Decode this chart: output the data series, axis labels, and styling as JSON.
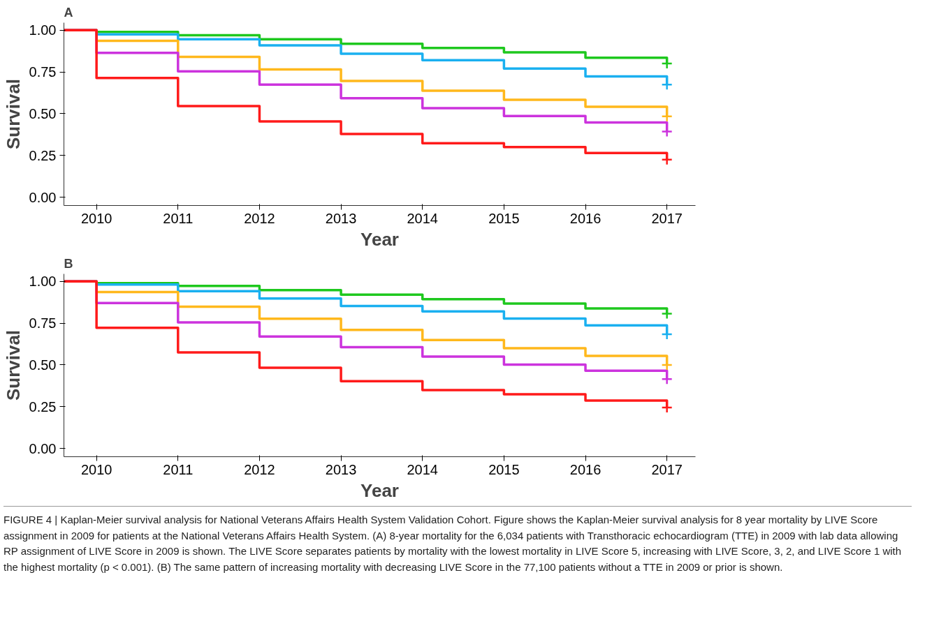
{
  "chart_data": [
    {
      "type": "step",
      "title": "A",
      "xlabel": "Year",
      "ylabel": "Survival",
      "xlim": [
        2009.6,
        2017.35
      ],
      "ylim": [
        -0.05,
        1.045
      ],
      "xticks": [
        2010,
        2011,
        2012,
        2013,
        2014,
        2015,
        2016,
        2017
      ],
      "yticks": [
        {
          "value": 0,
          "label": "0.00"
        },
        {
          "value": 0.25,
          "label": "0.25"
        },
        {
          "value": 0.5,
          "label": "0.50"
        },
        {
          "value": 0.75,
          "label": "0.75"
        },
        {
          "value": 1,
          "label": "1.00"
        }
      ],
      "grid": false,
      "series": [
        {
          "color": "#1ec81e",
          "x": [
            2009.6,
            2010,
            2011,
            2012,
            2013,
            2014,
            2015,
            2016,
            2017
          ],
          "values": [
            1,
            0.99,
            0.97,
            0.946,
            0.919,
            0.894,
            0.867,
            0.835,
            0.8
          ]
        },
        {
          "color": "#1ab0f0",
          "x": [
            2009.6,
            2010,
            2011,
            2012,
            2013,
            2014,
            2015,
            2016,
            2017
          ],
          "values": [
            1,
            0.975,
            0.946,
            0.909,
            0.859,
            0.82,
            0.77,
            0.723,
            0.674
          ]
        },
        {
          "color": "#ffb81c",
          "x": [
            2009.6,
            2010,
            2011,
            2012,
            2013,
            2014,
            2015,
            2016,
            2017
          ],
          "values": [
            1,
            0.936,
            0.84,
            0.765,
            0.696,
            0.637,
            0.583,
            0.541,
            0.484
          ]
        },
        {
          "color": "#cc33dd",
          "x": [
            2009.6,
            2010,
            2011,
            2012,
            2013,
            2014,
            2015,
            2016,
            2017
          ],
          "values": [
            1,
            0.864,
            0.753,
            0.674,
            0.593,
            0.533,
            0.486,
            0.447,
            0.393
          ]
        },
        {
          "color": "#ff1a1a",
          "x": [
            2009.6,
            2010,
            2011,
            2012,
            2013,
            2014,
            2015,
            2016,
            2017
          ],
          "values": [
            1,
            0.714,
            0.546,
            0.454,
            0.378,
            0.323,
            0.3,
            0.264,
            0.225
          ]
        },
        {
          "type": "scatter",
          "marker": "cross",
          "color": "#1ec81e",
          "x": [
            2017
          ],
          "values": [
            0.8
          ]
        },
        {
          "type": "scatter",
          "marker": "cross",
          "color": "#1ab0f0",
          "x": [
            2017
          ],
          "values": [
            0.674
          ]
        },
        {
          "type": "scatter",
          "marker": "cross",
          "color": "#ffb81c",
          "x": [
            2017
          ],
          "values": [
            0.484
          ]
        },
        {
          "type": "scatter",
          "marker": "cross",
          "color": "#cc33dd",
          "x": [
            2017
          ],
          "values": [
            0.393
          ]
        },
        {
          "type": "scatter",
          "marker": "cross",
          "color": "#ff1a1a",
          "x": [
            2017
          ],
          "values": [
            0.225
          ]
        }
      ]
    },
    {
      "type": "step",
      "title": "B",
      "xlabel": "Year",
      "ylabel": "Survival",
      "xlim": [
        2009.6,
        2017.35
      ],
      "ylim": [
        -0.05,
        1.045
      ],
      "xticks": [
        2010,
        2011,
        2012,
        2013,
        2014,
        2015,
        2016,
        2017
      ],
      "yticks": [
        {
          "value": 0,
          "label": "0.00"
        },
        {
          "value": 0.25,
          "label": "0.25"
        },
        {
          "value": 0.5,
          "label": "0.50"
        },
        {
          "value": 0.75,
          "label": "0.75"
        },
        {
          "value": 1,
          "label": "1.00"
        }
      ],
      "grid": false,
      "annotations": [
        "FIGURE 4 | Kaplan-Meier survival analysis for National Veterans Affairs Health System Validation Cohort. Figure shows the Kaplan-Meier survival analysis for 8 year mortality by LIVE Score assignment in 2009 for patients at the National Veterans Affairs Health System. (A) 8-year mortality for the 6,034 patients with Transthoracic echocardiogram (TTE) in 2009 with lab data allowing RP assignment of LIVE Score in 2009 is shown. The LIVE Score separates patients by mortality with the lowest mortality in LIVE Score 5, increasing with LIVE Score, 3, 2, and LIVE Score 1 with the highest mortality (p < 0.001). (B) The same pattern of increasing mortality with decreasing LIVE Score in the 77,100 patients without a TTE in 2009 or prior is shown."
      ],
      "series": [
        {
          "color": "#1ec81e",
          "x": [
            2009.6,
            2010,
            2011,
            2012,
            2013,
            2014,
            2015,
            2016,
            2017
          ],
          "values": [
            1,
            0.99,
            0.973,
            0.948,
            0.921,
            0.894,
            0.867,
            0.838,
            0.807
          ]
        },
        {
          "color": "#1ab0f0",
          "x": [
            2009.6,
            2010,
            2011,
            2012,
            2013,
            2014,
            2015,
            2016,
            2017
          ],
          "values": [
            1,
            0.981,
            0.942,
            0.898,
            0.853,
            0.82,
            0.778,
            0.737,
            0.683
          ]
        },
        {
          "color": "#ffb81c",
          "x": [
            2009.6,
            2010,
            2011,
            2012,
            2013,
            2014,
            2015,
            2016,
            2017
          ],
          "values": [
            1,
            0.936,
            0.849,
            0.776,
            0.71,
            0.649,
            0.6,
            0.554,
            0.5
          ]
        },
        {
          "color": "#cc33dd",
          "x": [
            2009.6,
            2010,
            2011,
            2012,
            2013,
            2014,
            2015,
            2016,
            2017
          ],
          "values": [
            1,
            0.871,
            0.755,
            0.67,
            0.606,
            0.55,
            0.502,
            0.465,
            0.415
          ]
        },
        {
          "color": "#ff1a1a",
          "x": [
            2009.6,
            2010,
            2011,
            2012,
            2013,
            2014,
            2015,
            2016,
            2017
          ],
          "values": [
            1,
            0.722,
            0.575,
            0.483,
            0.402,
            0.349,
            0.324,
            0.286,
            0.245
          ]
        },
        {
          "type": "scatter",
          "marker": "cross",
          "color": "#1ec81e",
          "x": [
            2017
          ],
          "values": [
            0.807
          ]
        },
        {
          "type": "scatter",
          "marker": "cross",
          "color": "#1ab0f0",
          "x": [
            2017
          ],
          "values": [
            0.683
          ]
        },
        {
          "type": "scatter",
          "marker": "cross",
          "color": "#ffb81c",
          "x": [
            2017
          ],
          "values": [
            0.5
          ]
        },
        {
          "type": "scatter",
          "marker": "cross",
          "color": "#cc33dd",
          "x": [
            2017
          ],
          "values": [
            0.415
          ]
        },
        {
          "type": "scatter",
          "marker": "cross",
          "color": "#ff1a1a",
          "x": [
            2017
          ],
          "values": [
            0.245
          ]
        }
      ]
    }
  ]
}
